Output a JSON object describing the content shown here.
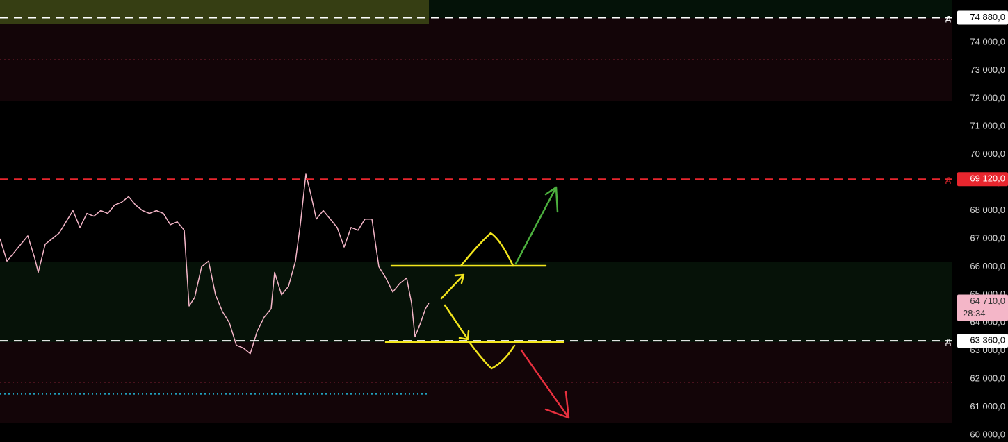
{
  "chart_data": {
    "type": "line",
    "x": [
      0,
      10,
      20,
      30,
      40,
      50,
      55,
      65,
      75,
      85,
      95,
      105,
      115,
      125,
      135,
      145,
      155,
      165,
      175,
      185,
      195,
      205,
      215,
      225,
      235,
      245,
      255,
      265,
      272,
      280,
      290,
      300,
      310,
      320,
      330,
      340,
      350,
      360,
      370,
      380,
      390,
      395,
      405,
      415,
      425,
      432,
      440,
      447,
      455,
      465,
      475,
      485,
      495,
      505,
      515,
      525,
      535,
      545,
      555,
      565,
      575,
      585,
      592,
      597,
      605,
      612,
      617
    ],
    "values": [
      67000,
      66200,
      66500,
      66800,
      67100,
      66300,
      65800,
      66800,
      67000,
      67200,
      67600,
      68000,
      67400,
      67900,
      67800,
      68000,
      67900,
      68200,
      68300,
      68500,
      68200,
      68000,
      67900,
      68000,
      67900,
      67500,
      67600,
      67300,
      64600,
      64900,
      66000,
      66200,
      65000,
      64400,
      64000,
      63200,
      63100,
      62900,
      63700,
      64200,
      64500,
      65800,
      65000,
      65300,
      66200,
      67500,
      69300,
      68600,
      67700,
      68000,
      67700,
      67400,
      66700,
      67400,
      67300,
      67700,
      67700,
      66000,
      65600,
      65100,
      65400,
      65600,
      64700,
      63500,
      64000,
      64500,
      64710
    ],
    "color": "#f4b6c8",
    "xlim": [
      0,
      1370
    ],
    "ylim": [
      59750,
      75510
    ],
    "yticks": [
      {
        "value": 60000,
        "label": "60 000,0"
      },
      {
        "value": 61000,
        "label": "61 000,0"
      },
      {
        "value": 62000,
        "label": "62 000,0"
      },
      {
        "value": 63000,
        "label": "63 000,0"
      },
      {
        "value": 64000,
        "label": "64 000,0"
      },
      {
        "value": 65000,
        "label": "65 000,0"
      },
      {
        "value": 66000,
        "label": "66 000,0"
      },
      {
        "value": 67000,
        "label": "67 000,0"
      },
      {
        "value": 68000,
        "label": "68 000,0"
      },
      {
        "value": 69000,
        "label": "69 000,0"
      },
      {
        "value": 70000,
        "label": "70 000,0"
      },
      {
        "value": 71000,
        "label": "71 000,0"
      },
      {
        "value": 72000,
        "label": "72 000,0"
      },
      {
        "value": 73000,
        "label": "73 000,0"
      },
      {
        "value": 74000,
        "label": "74 000,0"
      }
    ],
    "levels": [
      {
        "value": 74880,
        "label": "74 880,0",
        "marker": "д",
        "color": "#ffffff",
        "tag_color": "#ffffff",
        "text_color": "#000000",
        "style": "dashed"
      },
      {
        "value": 69120,
        "label": "69 120,0",
        "marker": "д",
        "color": "#e8262e",
        "tag_color": "#e8262e",
        "text_color": "#ffffff",
        "style": "dashed"
      },
      {
        "value": 63360,
        "label": "63 360,0",
        "marker": "д",
        "color": "#ffffff",
        "tag_color": "#ffffff",
        "text_color": "#000000",
        "style": "dashed"
      },
      {
        "value": 64710,
        "label": "64 710,0",
        "countdown": "28:34",
        "color": "#888888",
        "tag_color": "#f4b6c8",
        "text_color": "#333333",
        "style": "dotted"
      }
    ],
    "lines": [
      {
        "value": 73380,
        "color": "#6a1a2a",
        "style": "dotted"
      },
      {
        "value": 61880,
        "color": "#6a1a2a",
        "style": "dotted"
      },
      {
        "value": 61460,
        "color": "#21b8d8",
        "style": "dotted"
      }
    ]
  }
}
